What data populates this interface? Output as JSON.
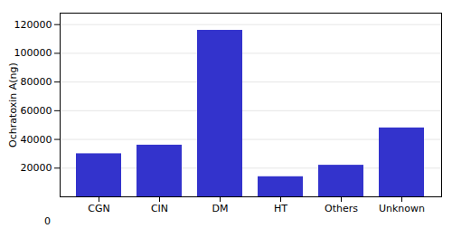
{
  "chart_data": {
    "type": "bar",
    "categories": [
      "CGN",
      "CIN",
      "DM",
      "HT",
      "Others",
      "Unknown"
    ],
    "values": [
      30000,
      36000,
      116000,
      14000,
      22000,
      48000
    ],
    "color": "#3333cc",
    "ylabel": "Ochratoxin A(ng)",
    "ylim": [
      0,
      128000
    ],
    "yticks": [
      20000,
      40000,
      60000,
      80000,
      100000,
      120000
    ],
    "grid": true,
    "annotations": [
      "0"
    ]
  }
}
